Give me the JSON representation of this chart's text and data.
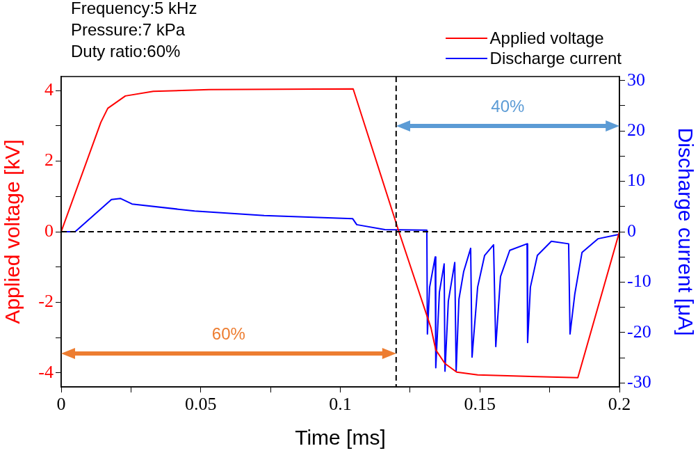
{
  "chart_data": {
    "type": "line",
    "xlabel": "Time [ms]",
    "ylabel": "Applied voltage [kV]",
    "y2label": "Discharge current [μA]",
    "annotations": [
      "Frequency:5 kHz",
      "Pressure:7 kPa",
      "Duty ratio:60%",
      "60%",
      "40%"
    ],
    "xlim": [
      0,
      0.2
    ],
    "xticks": [
      0,
      {
        "value": 0.025,
        "label": null
      },
      0.05,
      {
        "value": 0.075,
        "label": null
      },
      0.1,
      {
        "value": 0.125,
        "label": null
      },
      0.15,
      {
        "value": 0.175,
        "label": null
      },
      0.2
    ],
    "ylim": [
      -4.4,
      4.4
    ],
    "yticks": [
      -4,
      {
        "value": -3,
        "label": null
      },
      -2,
      {
        "value": -1,
        "label": null
      },
      0,
      {
        "value": 1,
        "label": null
      },
      2,
      {
        "value": 3,
        "label": null
      },
      4
    ],
    "y2lim": [
      -30.8,
      30.8
    ],
    "y2ticks": [
      -30,
      {
        "value": -25,
        "label": null
      },
      -20,
      {
        "value": -15,
        "label": null
      },
      -10,
      {
        "value": -5,
        "label": null
      },
      0,
      {
        "value": 5,
        "label": null
      },
      10,
      {
        "value": 15,
        "label": null
      },
      20,
      {
        "value": 25,
        "label": null
      },
      30
    ],
    "ref_lines": [
      {
        "axis": "x",
        "value": 0.12,
        "color": "#000000",
        "line_style": "dashed"
      },
      {
        "axis": "y",
        "value": 0,
        "color": "#000000",
        "line_style": "dashed"
      }
    ],
    "grid": false,
    "legend": "top right",
    "marker": "none",
    "line_style": "solid",
    "series": [
      {
        "name": "Applied voltage",
        "color": "#ff0000",
        "x": [
          0,
          0.0142,
          0.0167,
          0.023,
          0.033,
          0.053,
          0.1046,
          0.121,
          0.1325,
          0.1342,
          0.1375,
          0.1417,
          0.1492,
          0.1851,
          0.2
        ],
        "values": [
          0,
          3.1,
          3.5,
          3.85,
          3.98,
          4.03,
          4.05,
          0,
          -2.73,
          -3.35,
          -3.74,
          -3.98,
          -4.06,
          -4.14,
          0
        ]
      },
      {
        "name": "Discharge current",
        "color": "#0000ff",
        "axis": "y2",
        "x": [
          0,
          0.005,
          0.018,
          0.0212,
          0.0254,
          0.0478,
          0.0727,
          0.1044,
          0.1059,
          0.116,
          0.131,
          0.1312,
          0.132,
          0.134,
          0.1342,
          0.1355,
          0.1372,
          0.1375,
          0.1387,
          0.141,
          0.1415,
          0.1425,
          0.1442,
          0.1467,
          0.1472,
          0.1492,
          0.1517,
          0.1549,
          0.1557,
          0.1574,
          0.1607,
          0.1669,
          0.1671,
          0.1681,
          0.1706,
          0.1756,
          0.1818,
          0.1823,
          0.184,
          0.1866,
          0.1923,
          0.2
        ],
        "values": [
          0,
          0,
          6.4,
          6.6,
          5.5,
          4.1,
          3.2,
          2.6,
          1.4,
          0.4,
          0.3,
          -20.3,
          -11,
          -5,
          -27,
          -12,
          -6.4,
          -27.7,
          -13.8,
          -6.1,
          -27.7,
          -13.4,
          -7.9,
          -3.3,
          -24.9,
          -11,
          -4.7,
          -2.6,
          -22.8,
          -8.9,
          -3.7,
          -2.4,
          -22,
          -11,
          -4.7,
          -1.9,
          -2.4,
          -20.3,
          -12.4,
          -4.1,
          -1.4,
          -0.5
        ]
      }
    ]
  }
}
